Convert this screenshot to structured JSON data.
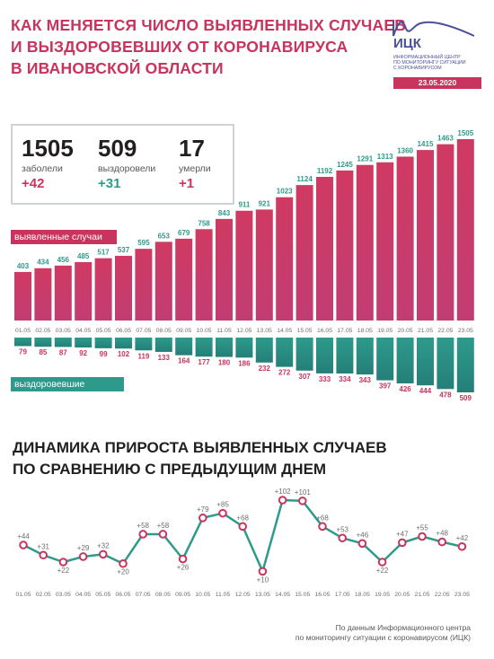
{
  "header": {
    "title_lines": [
      "Как меняется число выявленных случаев",
      "и выздоровевших от коронавируса",
      "в Ивановской области"
    ],
    "logo_name": "ИЦК",
    "logo_sub_lines": [
      "Информационный центр",
      "по мониторингу ситуации",
      "с коронавирусом"
    ],
    "date": "23.05.2020"
  },
  "stats": [
    {
      "value": "1505",
      "label": "заболели",
      "delta": "+42"
    },
    {
      "value": "509",
      "label": "выздоровели",
      "delta": "+31"
    },
    {
      "value": "17",
      "label": "умерли",
      "delta": "+1"
    }
  ],
  "labels": {
    "cases": "выявленные случаи",
    "recovered": "выздоровевшие"
  },
  "section2": {
    "title_lines": [
      "Динамика прироста выявленных случаев",
      "по сравнению с предыдущим днем"
    ]
  },
  "source_lines": [
    "По данным Информационного центра",
    "по мониторингу ситуации с коронавирусом (ИЦК)"
  ],
  "colors": {
    "accent": "#c8345d",
    "teal": "#2e9a8c",
    "navy": "#4a4f9c"
  },
  "chart_data": [
    {
      "type": "bar",
      "categories": [
        "01.05",
        "02.05",
        "03.05",
        "04.05",
        "05.05",
        "06.05",
        "07.05",
        "08.05",
        "09.05",
        "10.05",
        "11.05",
        "12.05",
        "13.05",
        "14.05",
        "15.05",
        "16.05",
        "17.05",
        "18.05",
        "19.05",
        "20.05",
        "21.05",
        "22.05",
        "23.05"
      ],
      "series": [
        {
          "name": "выявленные случаи",
          "values": [
            403,
            434,
            456,
            485,
            517,
            537,
            595,
            653,
            679,
            758,
            843,
            911,
            921,
            1023,
            1124,
            1192,
            1245,
            1291,
            1313,
            1360,
            1415,
            1463,
            1505
          ]
        },
        {
          "name": "выздоровевшие",
          "values": [
            79,
            85,
            87,
            92,
            99,
            102,
            119,
            133,
            164,
            177,
            180,
            186,
            232,
            272,
            307,
            333,
            334,
            343,
            397,
            426,
            444,
            478,
            509
          ]
        }
      ]
    },
    {
      "type": "line",
      "x": [
        "01.05",
        "02.05",
        "03.05",
        "04.05",
        "05.05",
        "06.05",
        "07.05",
        "08.05",
        "09.05",
        "10.05",
        "11.05",
        "12.05",
        "13.05",
        "14.05",
        "15.05",
        "16.05",
        "17.05",
        "18.05",
        "19.05",
        "20.05",
        "21.05",
        "22.05",
        "23.05"
      ],
      "values": [
        44,
        31,
        22,
        29,
        32,
        20,
        58,
        58,
        26,
        79,
        85,
        68,
        10,
        102,
        101,
        68,
        53,
        46,
        22,
        47,
        55,
        48,
        42
      ],
      "labels": [
        "+44",
        "+31",
        "+22",
        "+29",
        "+32",
        "+20",
        "+58",
        "+58",
        "+26",
        "+79",
        "+85",
        "+68",
        "+10",
        "+102",
        "+101",
        "+68",
        "+53",
        "+46",
        "+22",
        "+47",
        "+55",
        "+48",
        "+42"
      ]
    }
  ]
}
